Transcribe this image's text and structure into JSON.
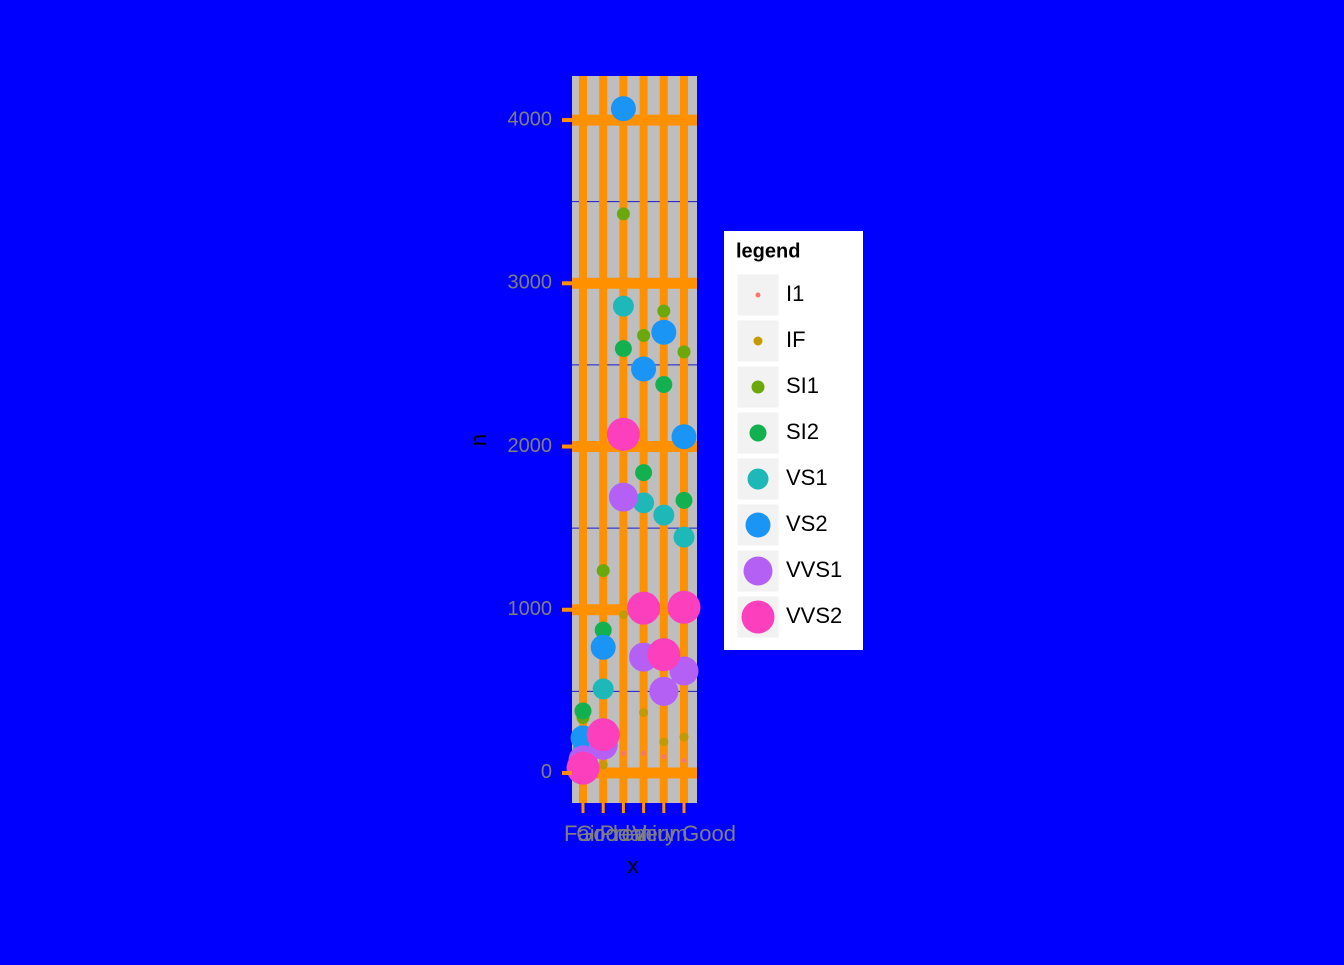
{
  "chart_data": {
    "type": "scatter",
    "x_label": "x",
    "y_label": "n",
    "legend_title": "legend",
    "categories": [
      "Fair",
      "Good",
      "Ideal",
      "Premium",
      null,
      "Very Good"
    ],
    "ylim": [
      -184,
      4270
    ],
    "yticks": [
      0,
      1000,
      2000,
      3000,
      4000
    ],
    "minor_yticks": [
      500,
      1500,
      2500,
      3500
    ],
    "grid": true,
    "series": [
      {
        "name": "I1",
        "color": "#f8766d",
        "values": [
          10,
          80,
          120,
          120,
          100,
          75
        ]
      },
      {
        "name": "IF",
        "color": "#c49a00",
        "values": [
          5,
          50,
          970,
          370,
          190,
          220
        ]
      },
      {
        "name": "SI1",
        "color": "#6aa80c",
        "values": [
          340,
          1240,
          3425,
          2680,
          2830,
          2580
        ]
      },
      {
        "name": "SI2",
        "color": "#13b050",
        "values": [
          380,
          875,
          2600,
          1840,
          2380,
          1670
        ]
      },
      {
        "name": "VS1",
        "color": "#1fb8b8",
        "values": [
          140,
          515,
          2860,
          1655,
          1580,
          1445
        ]
      },
      {
        "name": "VS2",
        "color": "#1a94f5",
        "values": [
          215,
          770,
          4070,
          2475,
          2700,
          2060
        ]
      },
      {
        "name": "VVS1",
        "color": "#b560f5",
        "values": [
          80,
          170,
          1690,
          710,
          500,
          625
        ]
      },
      {
        "name": "VVS2",
        "color": "#fb3fbd",
        "values": [
          30,
          235,
          2075,
          1010,
          725,
          1015
        ]
      }
    ]
  }
}
